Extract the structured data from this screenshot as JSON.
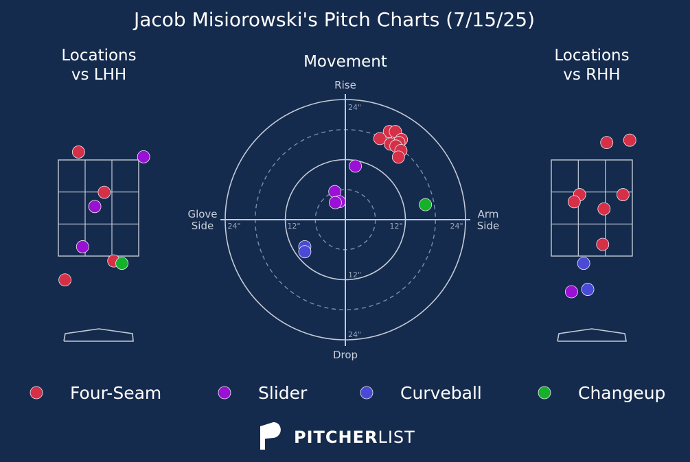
{
  "title": "Jacob Misiorowski's Pitch Charts (7/15/25)",
  "colors": {
    "background": "#152b4d",
    "grid": "#c3cad6",
    "Four-Seam": "#d63048",
    "Slider": "#9a10d4",
    "Curveball": "#4a4ad6",
    "Changeup": "#17b02a"
  },
  "legend": [
    "Four-Seam",
    "Slider",
    "Curveball",
    "Changeup"
  ],
  "brand": {
    "bold": "PITCHER",
    "light": "LIST"
  },
  "chart_data": [
    {
      "type": "scatter",
      "id": "loc_lhh",
      "title": "Locations\nvs LHH",
      "xlim": [
        -2.0,
        2.0
      ],
      "ylim": [
        0.0,
        4.7
      ],
      "points": [
        {
          "pitch": "Four-Seam",
          "x": -0.75,
          "y": 3.95
        },
        {
          "pitch": "Four-Seam",
          "x": 0.2,
          "y": 3.1
        },
        {
          "pitch": "Four-Seam",
          "x": 0.55,
          "y": 1.65
        },
        {
          "pitch": "Four-Seam",
          "x": -1.25,
          "y": 1.25
        },
        {
          "pitch": "Slider",
          "x": 1.65,
          "y": 3.85
        },
        {
          "pitch": "Slider",
          "x": -0.15,
          "y": 2.8
        },
        {
          "pitch": "Slider",
          "x": -0.6,
          "y": 1.95
        },
        {
          "pitch": "Changeup",
          "x": 0.85,
          "y": 1.6
        }
      ]
    },
    {
      "type": "scatter",
      "id": "movement",
      "title": "Movement",
      "axis_labels": {
        "top": "Rise",
        "bottom": "Drop",
        "left": "Glove\nSide",
        "right": "Arm\nSide"
      },
      "ring_labels": [
        "12\"",
        "24\""
      ],
      "xlim": [
        -24,
        24
      ],
      "ylim": [
        -24,
        24
      ],
      "points": [
        {
          "pitch": "Four-Seam",
          "x": 8.8,
          "y": 17.6
        },
        {
          "pitch": "Four-Seam",
          "x": 10.0,
          "y": 17.6
        },
        {
          "pitch": "Four-Seam",
          "x": 6.9,
          "y": 16.2
        },
        {
          "pitch": "Four-Seam",
          "x": 11.2,
          "y": 16.0
        },
        {
          "pitch": "Four-Seam",
          "x": 10.7,
          "y": 15.4
        },
        {
          "pitch": "Four-Seam",
          "x": 9.0,
          "y": 15.1
        },
        {
          "pitch": "Four-Seam",
          "x": 10.1,
          "y": 14.7
        },
        {
          "pitch": "Four-Seam",
          "x": 11.1,
          "y": 13.8
        },
        {
          "pitch": "Four-Seam",
          "x": 10.6,
          "y": 12.5
        },
        {
          "pitch": "Slider",
          "x": 2.0,
          "y": 10.7
        },
        {
          "pitch": "Slider",
          "x": -2.1,
          "y": 5.6
        },
        {
          "pitch": "Slider",
          "x": -1.2,
          "y": 3.6
        },
        {
          "pitch": "Slider",
          "x": -2.0,
          "y": 3.4
        },
        {
          "pitch": "Curveball",
          "x": -8.1,
          "y": -5.4
        },
        {
          "pitch": "Curveball",
          "x": -8.1,
          "y": -6.4
        },
        {
          "pitch": "Changeup",
          "x": 16.0,
          "y": 3.0
        }
      ]
    },
    {
      "type": "scatter",
      "id": "loc_rhh",
      "title": "Locations\nvs RHH",
      "xlim": [
        -2.0,
        2.0
      ],
      "ylim": [
        0.0,
        4.7
      ],
      "points": [
        {
          "pitch": "Four-Seam",
          "x": 0.55,
          "y": 4.15
        },
        {
          "pitch": "Four-Seam",
          "x": 1.4,
          "y": 4.2
        },
        {
          "pitch": "Four-Seam",
          "x": -0.45,
          "y": 3.05
        },
        {
          "pitch": "Four-Seam",
          "x": -0.65,
          "y": 2.9
        },
        {
          "pitch": "Four-Seam",
          "x": 0.45,
          "y": 2.75
        },
        {
          "pitch": "Four-Seam",
          "x": 1.15,
          "y": 3.05
        },
        {
          "pitch": "Four-Seam",
          "x": 0.4,
          "y": 2.0
        },
        {
          "pitch": "Curveball",
          "x": -0.3,
          "y": 1.6
        },
        {
          "pitch": "Curveball",
          "x": -0.15,
          "y": 1.05
        },
        {
          "pitch": "Slider",
          "x": -0.75,
          "y": 1.0
        }
      ]
    }
  ]
}
